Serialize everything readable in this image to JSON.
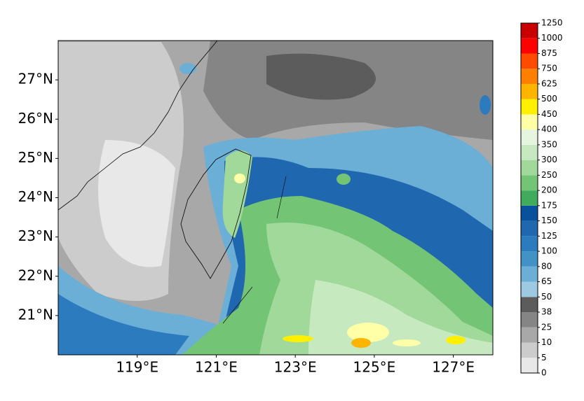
{
  "chart_data": {
    "type": "contour-map",
    "xlim": [
      117,
      128
    ],
    "ylim": [
      20,
      28
    ],
    "xticks": [
      {
        "value": 119,
        "label": "119°E"
      },
      {
        "value": 121,
        "label": "121°E"
      },
      {
        "value": 123,
        "label": "123°E"
      },
      {
        "value": 125,
        "label": "125°E"
      },
      {
        "value": 127,
        "label": "127°E"
      }
    ],
    "yticks": [
      {
        "value": 21,
        "label": "21°N"
      },
      {
        "value": 22,
        "label": "22°N"
      },
      {
        "value": 23,
        "label": "23°N"
      },
      {
        "value": 24,
        "label": "24°N"
      },
      {
        "value": 25,
        "label": "25°N"
      },
      {
        "value": 26,
        "label": "26°N"
      },
      {
        "value": 27,
        "label": "27°N"
      }
    ],
    "colorbar": {
      "levels": [
        0,
        5,
        10,
        25,
        38,
        50,
        65,
        80,
        100,
        125,
        150,
        175,
        200,
        250,
        300,
        350,
        400,
        450,
        500,
        625,
        750,
        875,
        1000,
        1250
      ],
      "colors": [
        "#e8e8e8",
        "#cccccc",
        "#a8a8a8",
        "#858585",
        "#5c5c5c",
        "#9ecae1",
        "#6baed6",
        "#4292c6",
        "#2c7bbe",
        "#1f68b0",
        "#08519c",
        "#41ab5d",
        "#74c476",
        "#a1d99b",
        "#c7e9c0",
        "#e5f5e0",
        "#ffffa8",
        "#fff000",
        "#ffb400",
        "#ff8000",
        "#ff4b00",
        "#ff0000",
        "#c80000"
      ]
    }
  }
}
